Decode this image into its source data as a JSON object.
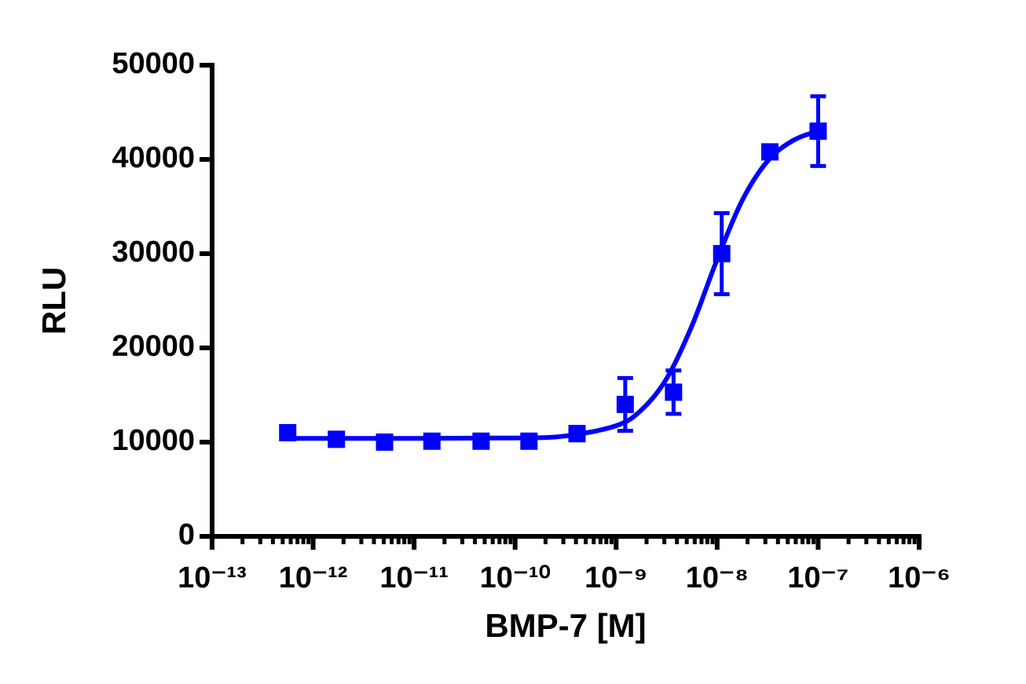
{
  "chart_data": {
    "type": "scatter",
    "x_label": "BMP-7 [M]",
    "y_label": "RLU",
    "x_scale": "log",
    "color": "#0000ff",
    "x": [
      1e-07,
      3.33e-08,
      1.11e-08,
      3.7e-09,
      1.23e-09,
      4.1e-10,
      1.37e-10,
      4.6e-11,
      1.5e-11,
      5.1e-12,
      1.7e-12,
      5.6e-13
    ],
    "values": [
      43000,
      40800,
      30000,
      15300,
      14000,
      10900,
      10100,
      10100,
      10100,
      10000,
      10300,
      11000
    ],
    "errors": [
      3700,
      500,
      4300,
      2300,
      2800,
      700,
      300,
      300,
      300,
      300,
      500,
      300
    ],
    "fit": {
      "x": [
        5.62e-13,
        1e-11,
        1e-10,
        3.16e-10,
        1e-09,
        1.78e-09,
        3.16e-09,
        5.62e-09,
        1e-08,
        1.78e-08,
        3.16e-08,
        5.62e-08,
        1e-07
      ],
      "values": [
        10400,
        10400,
        10440,
        10650,
        11740,
        13410,
        16740,
        22330,
        29390,
        35700,
        39830,
        42000,
        43020
      ]
    },
    "xlim": [
      1e-13,
      1e-06
    ],
    "ylim": [
      0,
      50000
    ],
    "xticks": [
      {
        "value": 1e-13,
        "label": "10⁻¹³"
      },
      {
        "value": 1e-12,
        "label": "10⁻¹²"
      },
      {
        "value": 1e-11,
        "label": "10⁻¹¹"
      },
      {
        "value": 1e-10,
        "label": "10⁻¹⁰"
      },
      {
        "value": 1e-09,
        "label": "10⁻⁹"
      },
      {
        "value": 1e-08,
        "label": "10⁻⁸"
      },
      {
        "value": 1e-07,
        "label": "10⁻⁷"
      },
      {
        "value": 1e-06,
        "label": "10⁻⁶"
      }
    ],
    "xminorticks": [
      2e-13,
      3e-13,
      4e-13,
      5e-13,
      6e-13,
      7e-13,
      8e-13,
      9e-13,
      2e-12,
      3e-12,
      4e-12,
      5e-12,
      6e-12,
      7e-12,
      8e-12,
      9e-12,
      2e-11,
      3e-11,
      4e-11,
      5e-11,
      6e-11,
      7e-11,
      8e-11,
      9e-11,
      2e-10,
      3e-10,
      4e-10,
      5e-10,
      6e-10,
      7e-10,
      8e-10,
      9e-10,
      2e-09,
      3e-09,
      4e-09,
      5e-09,
      6e-09,
      7e-09,
      8e-09,
      9e-09,
      2e-08,
      3e-08,
      4e-08,
      5e-08,
      6e-08,
      7e-08,
      8e-08,
      9e-08,
      2e-07,
      3e-07,
      4e-07,
      5e-07,
      6e-07,
      7e-07,
      8e-07,
      9e-07
    ],
    "yticks": [
      0,
      10000,
      20000,
      30000,
      40000,
      50000
    ]
  }
}
